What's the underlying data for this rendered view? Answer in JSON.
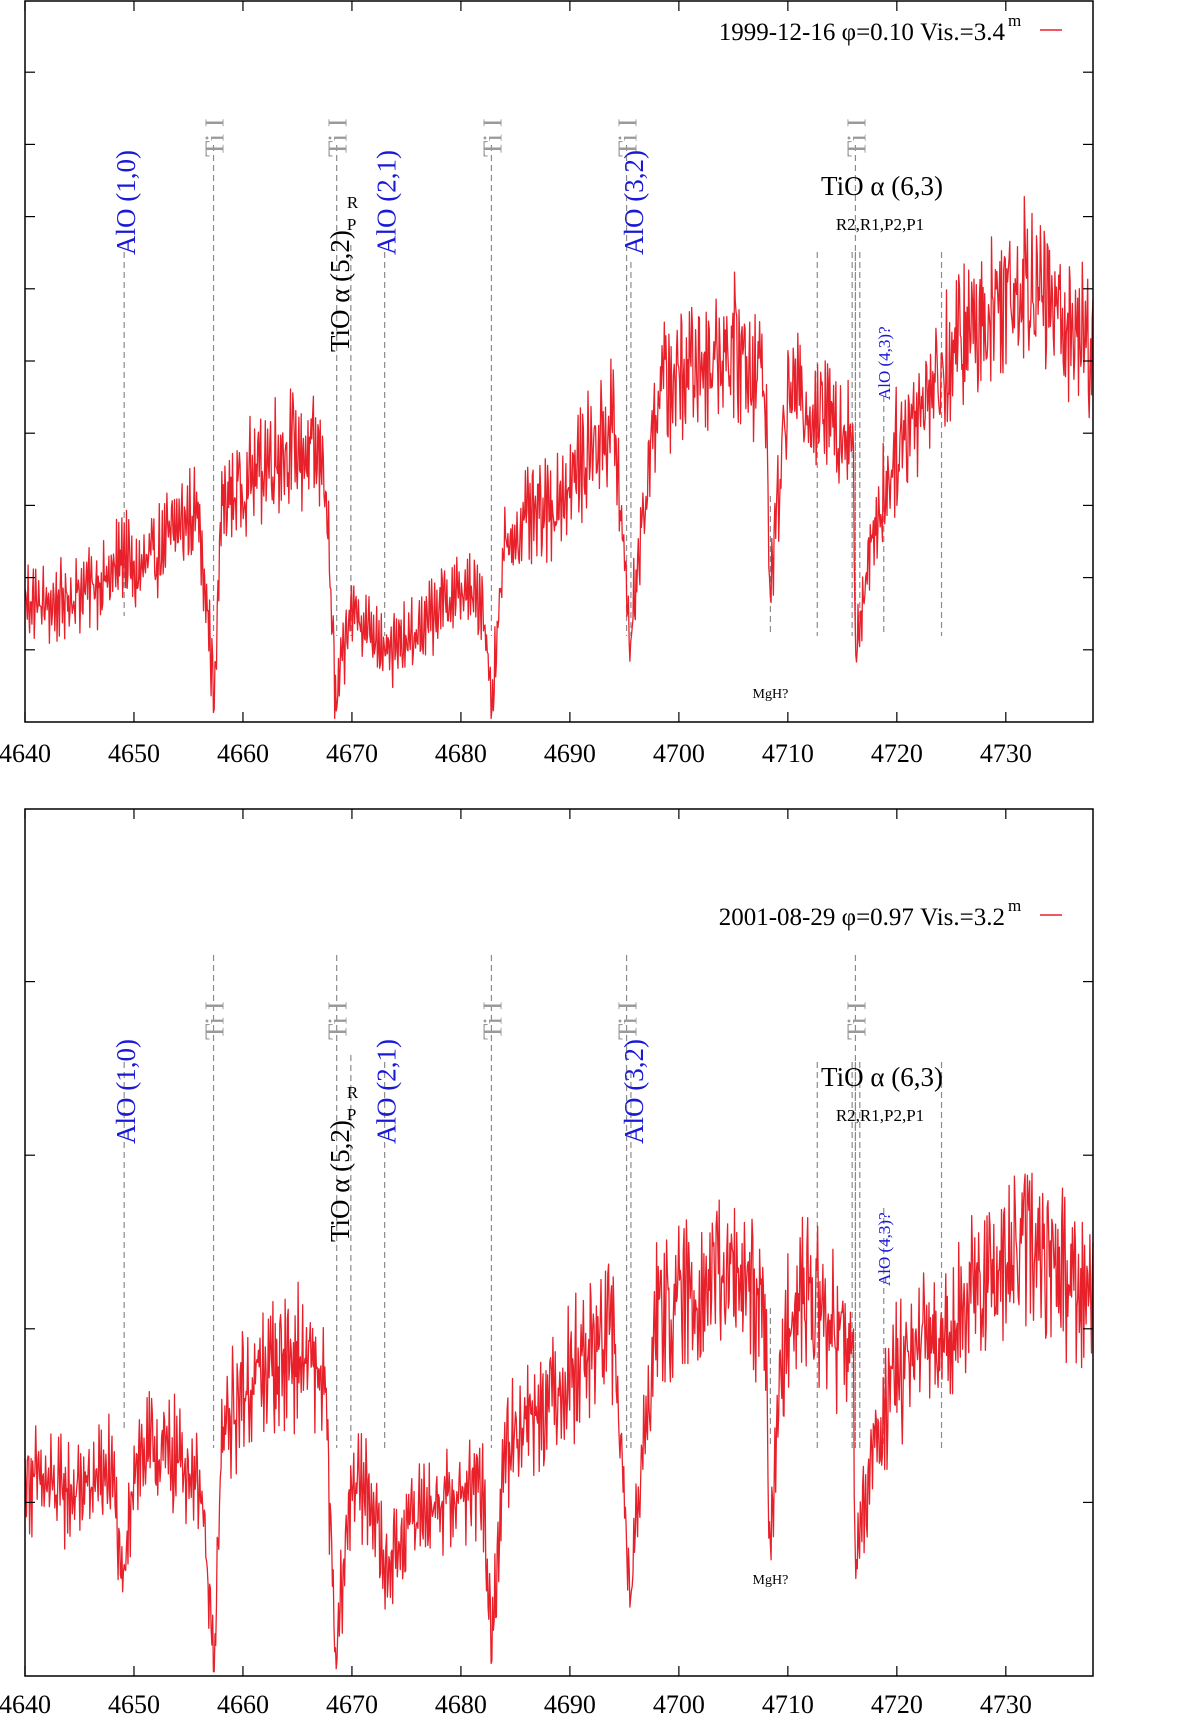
{
  "chart_data": [
    {
      "type": "line",
      "legend": "1999-12-16 φ=0.10 Vis.=3.4",
      "legend_superscript": "m",
      "xlim": [
        4640,
        4738
      ],
      "ylim": [
        0,
        1
      ],
      "x_ticks": [
        4640,
        4650,
        4660,
        4670,
        4680,
        4690,
        4700,
        4710,
        4720,
        4730
      ],
      "x_tick_labels": [
        "4640",
        "4650",
        "4660",
        "4670",
        "4680",
        "4690",
        "4700",
        "4710",
        "4720",
        "4730"
      ],
      "y_ticks": [
        0.1,
        0.2,
        0.3,
        0.4,
        0.5,
        0.6,
        0.7,
        0.8,
        0.9
      ],
      "series": [
        {
          "name": "1999-12-16",
          "color": "#e8202a",
          "x": [
            4640,
            4642,
            4644,
            4646,
            4648,
            4649,
            4650,
            4652,
            4654,
            4656,
            4657.4,
            4658,
            4660,
            4662,
            4664,
            4666,
            4667.5,
            4668.5,
            4670,
            4672,
            4674,
            4676,
            4678,
            4680,
            4682,
            4682.8,
            4684,
            4686,
            4688,
            4690,
            4692,
            4694,
            4695.5,
            4698,
            4700,
            4702,
            4704,
            4706,
            4708,
            4708.3,
            4710,
            4712,
            4714,
            4716,
            4716.2,
            4718,
            4720,
            4722,
            4724,
            4726,
            4728,
            4730,
            4732,
            4734,
            4736,
            4738
          ],
          "y": [
            0.17,
            0.16,
            0.17,
            0.19,
            0.2,
            0.24,
            0.2,
            0.23,
            0.27,
            0.29,
            0.03,
            0.3,
            0.33,
            0.36,
            0.38,
            0.37,
            0.36,
            0.03,
            0.16,
            0.12,
            0.1,
            0.12,
            0.16,
            0.18,
            0.17,
            0.03,
            0.24,
            0.28,
            0.29,
            0.33,
            0.38,
            0.42,
            0.12,
            0.46,
            0.48,
            0.5,
            0.52,
            0.51,
            0.47,
            0.18,
            0.46,
            0.44,
            0.42,
            0.4,
            0.11,
            0.27,
            0.38,
            0.44,
            0.48,
            0.53,
            0.56,
            0.6,
            0.62,
            0.58,
            0.55,
            0.52
          ]
        }
      ]
    },
    {
      "type": "line",
      "legend": "2001-08-29 φ=0.97 Vis.=3.2",
      "legend_superscript": "m",
      "xlim": [
        4640,
        4738
      ],
      "ylim": [
        0,
        1
      ],
      "x_ticks": [
        4640,
        4650,
        4660,
        4670,
        4680,
        4690,
        4700,
        4710,
        4720,
        4730
      ],
      "x_tick_labels": [
        "4640",
        "4650",
        "4660",
        "4670",
        "4680",
        "4690",
        "4700",
        "4710",
        "4720",
        "4730"
      ],
      "y_ticks": [
        0.2,
        0.4,
        0.6,
        0.8
      ],
      "series": [
        {
          "name": "2001-08-29",
          "color": "#e8202a",
          "x": [
            4640,
            4642,
            4644,
            4646,
            4648,
            4649,
            4650,
            4652,
            4654,
            4656,
            4657.4,
            4658,
            4660,
            4662,
            4664,
            4666,
            4667.5,
            4668.5,
            4670,
            4672,
            4673,
            4676,
            4678,
            4680,
            4682,
            4682.8,
            4684,
            4686,
            4688,
            4690,
            4692,
            4694,
            4695.5,
            4698,
            4700,
            4702,
            4704,
            4706,
            4708,
            4708.3,
            4710,
            4712,
            4714,
            4716,
            4716.2,
            4718,
            4720,
            4722,
            4724,
            4726,
            4728,
            4730,
            4732,
            4734,
            4736,
            4738
          ],
          "y": [
            0.23,
            0.22,
            0.21,
            0.22,
            0.24,
            0.09,
            0.25,
            0.26,
            0.25,
            0.23,
            0.01,
            0.27,
            0.33,
            0.35,
            0.37,
            0.36,
            0.34,
            0.02,
            0.23,
            0.2,
            0.12,
            0.19,
            0.2,
            0.21,
            0.22,
            0.03,
            0.26,
            0.3,
            0.32,
            0.35,
            0.38,
            0.4,
            0.1,
            0.42,
            0.43,
            0.45,
            0.46,
            0.45,
            0.41,
            0.16,
            0.43,
            0.44,
            0.4,
            0.37,
            0.13,
            0.27,
            0.35,
            0.37,
            0.4,
            0.42,
            0.45,
            0.47,
            0.5,
            0.48,
            0.46,
            0.44
          ]
        }
      ]
    }
  ],
  "annotations": {
    "ti": "Ti I",
    "alo_10": "AlO (1,0)",
    "alo_21": "AlO (2,1)",
    "alo_32": "AlO (3,2)",
    "alo_43": "AlO (4,3)?",
    "tio_52": "TiO α (5,2)",
    "tio_52_sup": "R",
    "tio_52_sub": "P",
    "tio_63": "TiO α (6,3)",
    "tio_63_branches": "R2,R1,P2,P1",
    "mgh": "MgH?"
  },
  "marker_positions": {
    "ti": [
      4657.3,
      4668.6,
      4682.8,
      4695.2,
      4716.2
    ],
    "alo_10": 4649.1,
    "tio_52": 4669.9,
    "alo_21": 4673.0,
    "alo_32": 4695.6,
    "mgh": 4708.4,
    "tio_63_lines": [
      4712.7,
      4715.9,
      4716.2,
      4716.6
    ],
    "alo_43": 4718.8,
    "extra": 4724.1
  }
}
